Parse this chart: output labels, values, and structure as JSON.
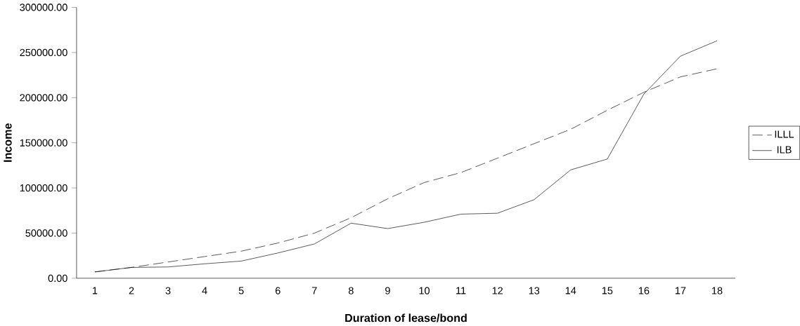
{
  "chart_data": {
    "type": "line",
    "xlabel": "Duration of lease/bond",
    "ylabel": "Income",
    "categories": [
      "1",
      "2",
      "3",
      "4",
      "5",
      "6",
      "7",
      "8",
      "9",
      "10",
      "11",
      "12",
      "13",
      "14",
      "15",
      "16",
      "17",
      "18"
    ],
    "series": [
      {
        "name": "ILLL",
        "color": "#000000",
        "line_style": "dashed",
        "values": [
          7000,
          12000,
          18000,
          24000,
          30000,
          39000,
          50000,
          67000,
          88000,
          106000,
          117000,
          133000,
          149000,
          165000,
          186000,
          206000,
          223000,
          232000
        ]
      },
      {
        "name": "ILB",
        "color": "#000000",
        "line_style": "solid",
        "values": [
          7000,
          12000,
          12500,
          16000,
          19000,
          28000,
          38000,
          61000,
          55000,
          62000,
          71000,
          72000,
          87000,
          120000,
          132000,
          204000,
          246000,
          263000
        ]
      }
    ],
    "ylim": [
      0,
      300000
    ],
    "yticks": [
      {
        "value": 0,
        "label": "0.00"
      },
      {
        "value": 50000,
        "label": "50000.00"
      },
      {
        "value": 100000,
        "label": "100000.00"
      },
      {
        "value": 150000,
        "label": "150000.00"
      },
      {
        "value": 200000,
        "label": "200000.00"
      },
      {
        "value": 250000,
        "label": "250000.00"
      },
      {
        "value": 300000,
        "label": "300000.00"
      }
    ],
    "grid": false,
    "legend": "right",
    "marker": "none"
  }
}
